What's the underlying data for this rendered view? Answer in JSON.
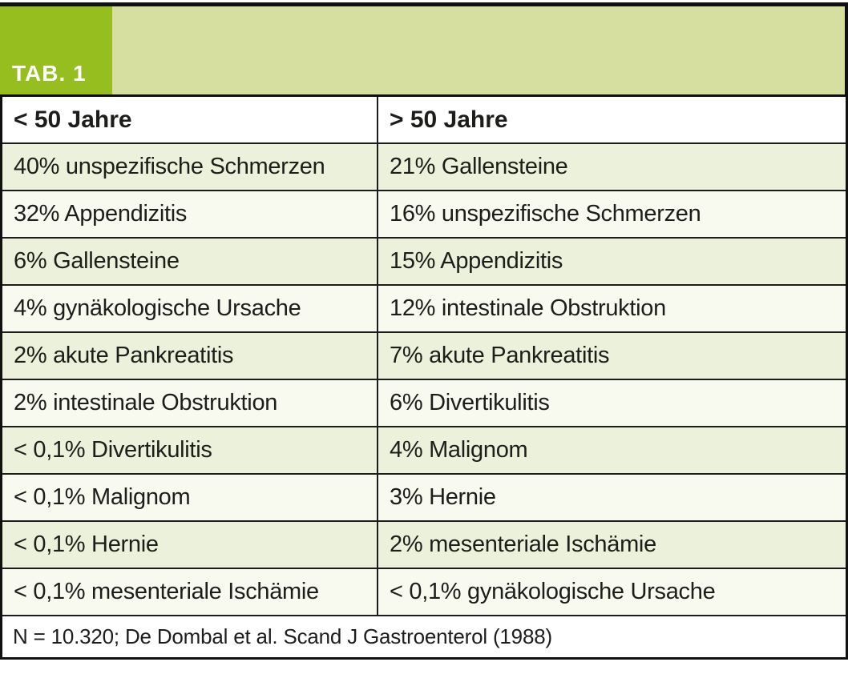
{
  "tag": {
    "label": "TAB. 1"
  },
  "table": {
    "headers": {
      "left": "< 50 Jahre",
      "right": "> 50 Jahre"
    },
    "rows": [
      {
        "left": "40% unspezifische Schmerzen",
        "right": "21% Gallensteine"
      },
      {
        "left": "32% Appendizitis",
        "right": "16% unspezifische Schmerzen"
      },
      {
        "left": "6% Gallensteine",
        "right": "15% Appendizitis"
      },
      {
        "left": "4% gynäkologische Ursache",
        "right": "12% intestinale Obstruktion"
      },
      {
        "left": "2% akute Pankreatitis",
        "right": "7% akute Pankreatitis"
      },
      {
        "left": "2% intestinale Obstruktion",
        "right": "6% Divertikulitis"
      },
      {
        "left": "< 0,1% Divertikulitis",
        "right": "4% Malignom"
      },
      {
        "left": "< 0,1% Malignom",
        "right": "3% Hernie"
      },
      {
        "left": "< 0,1% Hernie",
        "right": "2% mesenteriale Ischämie"
      },
      {
        "left": "< 0,1% mesenteriale Ischämie",
        "right": "< 0,1% gynäkologische Ursache"
      }
    ],
    "footer": "N = 10.320; De Dombal et al. Scand J Gastroenterol (1988)"
  },
  "colors": {
    "accent_green": "#96be1e",
    "band_green": "#d6dfa0",
    "row_green": "#ebf1da",
    "row_cream": "#f8f9ef",
    "rule_black": "#101010"
  }
}
